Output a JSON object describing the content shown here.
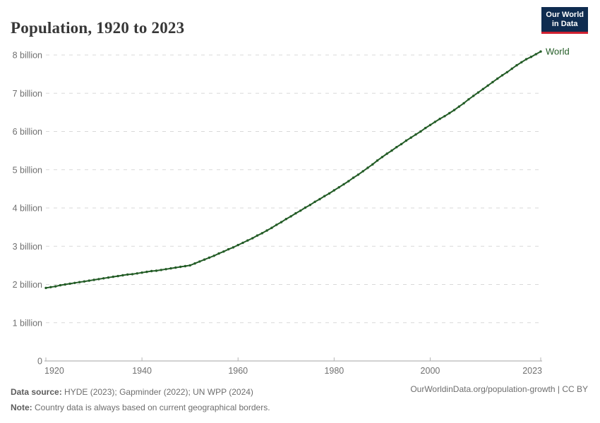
{
  "header": {
    "title": "Population, 1920 to 2023"
  },
  "logo": {
    "line1": "Our World",
    "line2": "in Data",
    "bg_color": "#0f2c50",
    "bar_color": "#cf2030"
  },
  "chart_data": {
    "type": "line",
    "title": "Population, 1920 to 2023",
    "xlabel": "",
    "ylabel": "",
    "unit": "billion",
    "grid": true,
    "legend_position": "end-of-line-label",
    "xlim": [
      1920,
      2023
    ],
    "ylim": [
      0,
      8
    ],
    "x_ticks": [
      1920,
      1940,
      1960,
      1980,
      2000,
      2023
    ],
    "y_ticks": [
      {
        "value": 0,
        "label": "0"
      },
      {
        "value": 1,
        "label": "1 billion"
      },
      {
        "value": 2,
        "label": "2 billion"
      },
      {
        "value": 3,
        "label": "3 billion"
      },
      {
        "value": 4,
        "label": "4 billion"
      },
      {
        "value": 5,
        "label": "5 billion"
      },
      {
        "value": 6,
        "label": "6 billion"
      },
      {
        "value": 7,
        "label": "7 billion"
      },
      {
        "value": 8,
        "label": "8 billion"
      }
    ],
    "series": [
      {
        "name": "World",
        "color": "#235c26",
        "x": [
          1920,
          1921,
          1922,
          1923,
          1924,
          1925,
          1926,
          1927,
          1928,
          1929,
          1930,
          1931,
          1932,
          1933,
          1934,
          1935,
          1936,
          1937,
          1938,
          1939,
          1940,
          1941,
          1942,
          1943,
          1944,
          1945,
          1946,
          1947,
          1948,
          1949,
          1950,
          1951,
          1952,
          1953,
          1954,
          1955,
          1956,
          1957,
          1958,
          1959,
          1960,
          1961,
          1962,
          1963,
          1964,
          1965,
          1966,
          1967,
          1968,
          1969,
          1970,
          1971,
          1972,
          1973,
          1974,
          1975,
          1976,
          1977,
          1978,
          1979,
          1980,
          1981,
          1982,
          1983,
          1984,
          1985,
          1986,
          1987,
          1988,
          1989,
          1990,
          1991,
          1992,
          1993,
          1994,
          1995,
          1996,
          1997,
          1998,
          1999,
          2000,
          2001,
          2002,
          2003,
          2004,
          2005,
          2006,
          2007,
          2008,
          2009,
          2010,
          2011,
          2012,
          2013,
          2014,
          2015,
          2016,
          2017,
          2018,
          2019,
          2020,
          2021,
          2022,
          2023
        ],
        "values": [
          1.91,
          1.93,
          1.95,
          1.98,
          2.0,
          2.02,
          2.04,
          2.06,
          2.08,
          2.1,
          2.12,
          2.14,
          2.16,
          2.18,
          2.2,
          2.22,
          2.24,
          2.26,
          2.27,
          2.29,
          2.31,
          2.33,
          2.35,
          2.36,
          2.38,
          2.4,
          2.42,
          2.44,
          2.46,
          2.48,
          2.5,
          2.55,
          2.6,
          2.65,
          2.7,
          2.75,
          2.81,
          2.86,
          2.92,
          2.97,
          3.03,
          3.09,
          3.15,
          3.21,
          3.28,
          3.34,
          3.41,
          3.48,
          3.56,
          3.63,
          3.71,
          3.78,
          3.86,
          3.93,
          4.01,
          4.08,
          4.16,
          4.23,
          4.31,
          4.38,
          4.46,
          4.54,
          4.62,
          4.7,
          4.79,
          4.87,
          4.96,
          5.05,
          5.14,
          5.24,
          5.33,
          5.42,
          5.5,
          5.59,
          5.67,
          5.76,
          5.84,
          5.92,
          6.0,
          6.09,
          6.17,
          6.25,
          6.33,
          6.4,
          6.48,
          6.56,
          6.65,
          6.74,
          6.84,
          6.93,
          7.02,
          7.11,
          7.2,
          7.29,
          7.38,
          7.47,
          7.55,
          7.64,
          7.73,
          7.81,
          7.89,
          7.95,
          8.02,
          8.09
        ]
      }
    ]
  },
  "footer": {
    "source_label": "Data source:",
    "source_text": " HYDE (2023); Gapminder (2022); UN WPP (2024)",
    "note_label": "Note:",
    "note_text": " Country data is always based on current geographical borders.",
    "link_text": "OurWorldinData.org/population-growth | CC BY"
  },
  "colors": {
    "accent_green": "#235c26",
    "grid": "#d9d9d9",
    "axis": "#a3a3a3",
    "tick": "#b5b5b5",
    "axis_label": "#707070",
    "title": "#373737",
    "footer": "#6e6e6e",
    "logo_bg": "#0f2c50",
    "logo_bar": "#cf2030"
  }
}
